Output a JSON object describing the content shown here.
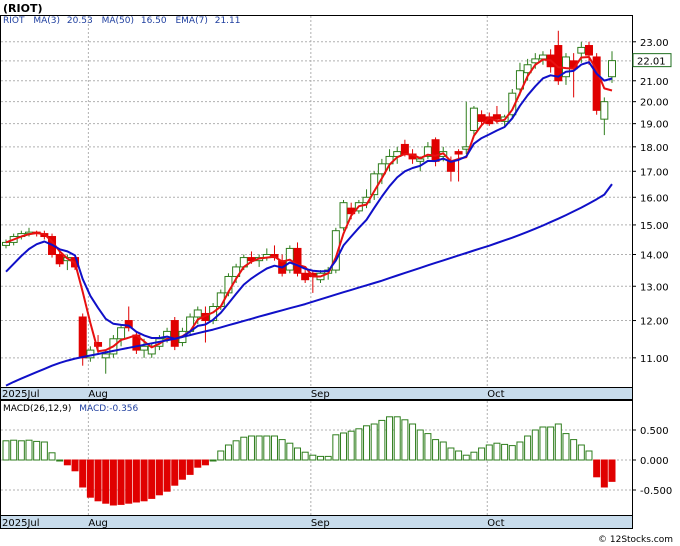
{
  "title": "(RIOT)",
  "footer": "© 12Stocks.com",
  "colors": {
    "up": "#2e7d1c",
    "down": "#e00000",
    "ma3": "#e81010",
    "ma50": "#1010c8",
    "ema7": "#1010c8",
    "axis": "#c8dcec",
    "grid": "#b0b0b0"
  },
  "price_chart": {
    "legend": {
      "symbol": "RIOT",
      "ma3": "MA(3)",
      "ma3_value": "20.53",
      "ma50": "MA(50)",
      "ma50_value": "16.50",
      "ema7": "EMA(7)",
      "ema7_value": "21.11"
    },
    "last_price_label": "22.01",
    "y_ticks": [
      "11.00",
      "12.00",
      "13.00",
      "14.00",
      "15.00",
      "16.00",
      "17.00",
      "18.00",
      "19.00",
      "20.00",
      "21.00",
      "22.00",
      "23.00"
    ],
    "x_labels": [
      "2025Jul",
      "Aug",
      "Sep",
      "Oct"
    ]
  },
  "macd_chart": {
    "legend": {
      "label": "MACD(26,12,9)",
      "value": "MACD:-0.356"
    },
    "y_ticks": [
      "0.500",
      "0.000",
      "-0.500"
    ],
    "x_labels": [
      "2025Jul",
      "Aug",
      "Sep",
      "Oct"
    ]
  },
  "chart_data": [
    {
      "type": "candlestick",
      "title": "(RIOT)",
      "y_scale": "log",
      "ylim": [
        10.3,
        24.2
      ],
      "x_labels": [
        "2025Jul",
        "Aug",
        "Sep",
        "Oct"
      ],
      "candles": [
        [
          14.3,
          14.5,
          14.2,
          14.4
        ],
        [
          14.4,
          14.7,
          14.3,
          14.6
        ],
        [
          14.6,
          14.8,
          14.5,
          14.7
        ],
        [
          14.7,
          14.9,
          14.6,
          14.75
        ],
        [
          14.75,
          14.8,
          14.6,
          14.7
        ],
        [
          14.7,
          14.8,
          14.5,
          14.6
        ],
        [
          14.6,
          14.7,
          13.9,
          14.0
        ],
        [
          14.0,
          14.2,
          13.6,
          13.7
        ],
        [
          13.8,
          14.0,
          13.5,
          13.9
        ],
        [
          13.9,
          14.0,
          13.5,
          13.6
        ],
        [
          12.1,
          12.2,
          10.8,
          11.0
        ],
        [
          11.0,
          11.3,
          10.9,
          11.2
        ],
        [
          11.4,
          11.6,
          11.1,
          11.3
        ],
        [
          11.0,
          11.2,
          10.6,
          11.1
        ],
        [
          11.1,
          11.6,
          11.0,
          11.5
        ],
        [
          11.5,
          11.9,
          11.3,
          11.8
        ],
        [
          12.0,
          12.4,
          11.7,
          11.8
        ],
        [
          11.6,
          11.7,
          11.1,
          11.2
        ],
        [
          11.2,
          11.5,
          11.0,
          11.3
        ],
        [
          11.1,
          11.4,
          11.0,
          11.3
        ],
        [
          11.3,
          11.6,
          11.2,
          11.5
        ],
        [
          11.5,
          11.8,
          11.4,
          11.7
        ],
        [
          12.0,
          12.1,
          11.2,
          11.3
        ],
        [
          11.4,
          11.8,
          11.3,
          11.7
        ],
        [
          11.7,
          12.2,
          11.6,
          12.1
        ],
        [
          12.1,
          12.4,
          11.9,
          12.3
        ],
        [
          12.2,
          12.4,
          11.4,
          12.0
        ],
        [
          12.0,
          12.5,
          11.9,
          12.4
        ],
        [
          12.4,
          12.9,
          12.3,
          12.8
        ],
        [
          12.8,
          13.4,
          12.7,
          13.3
        ],
        [
          13.3,
          13.7,
          13.1,
          13.6
        ],
        [
          13.6,
          14.0,
          13.5,
          13.9
        ],
        [
          13.9,
          14.1,
          13.7,
          13.8
        ],
        [
          13.8,
          14.0,
          13.6,
          13.9
        ],
        [
          13.9,
          14.2,
          13.8,
          14.0
        ],
        [
          14.0,
          14.3,
          13.8,
          13.9
        ],
        [
          13.8,
          14.0,
          13.3,
          13.4
        ],
        [
          13.5,
          14.3,
          13.4,
          14.2
        ],
        [
          14.2,
          14.4,
          13.3,
          13.4
        ],
        [
          13.4,
          13.5,
          13.1,
          13.2
        ],
        [
          13.4,
          13.5,
          12.8,
          13.3
        ],
        [
          13.2,
          13.5,
          13.1,
          13.4
        ],
        [
          13.4,
          13.6,
          13.2,
          13.5
        ],
        [
          13.5,
          14.9,
          13.4,
          14.8
        ],
        [
          14.9,
          15.9,
          14.8,
          15.8
        ],
        [
          15.6,
          15.8,
          15.2,
          15.4
        ],
        [
          15.5,
          15.9,
          15.4,
          15.8
        ],
        [
          15.8,
          16.3,
          15.6,
          16.0
        ],
        [
          16.1,
          17.0,
          15.9,
          16.9
        ],
        [
          16.9,
          17.5,
          16.5,
          17.3
        ],
        [
          17.3,
          17.9,
          17.0,
          17.6
        ],
        [
          17.6,
          18.0,
          17.3,
          17.8
        ],
        [
          18.1,
          18.3,
          17.6,
          17.7
        ],
        [
          17.7,
          17.9,
          17.3,
          17.5
        ],
        [
          17.4,
          17.6,
          17.0,
          17.5
        ],
        [
          17.6,
          18.2,
          17.5,
          18.0
        ],
        [
          18.3,
          18.4,
          17.2,
          17.4
        ],
        [
          17.6,
          18.0,
          17.4,
          17.8
        ],
        [
          17.4,
          17.6,
          16.6,
          17.0
        ],
        [
          17.8,
          17.9,
          16.6,
          17.7
        ],
        [
          17.9,
          20.0,
          17.7,
          18.0
        ],
        [
          18.7,
          19.8,
          18.4,
          19.7
        ],
        [
          19.4,
          19.6,
          18.9,
          19.1
        ],
        [
          19.3,
          19.5,
          18.9,
          19.0
        ],
        [
          19.4,
          19.8,
          19.0,
          19.2
        ],
        [
          19.1,
          19.4,
          18.9,
          19.3
        ],
        [
          19.4,
          20.6,
          19.2,
          20.4
        ],
        [
          20.6,
          21.9,
          20.3,
          21.5
        ],
        [
          21.4,
          22.1,
          21.0,
          21.8
        ],
        [
          21.9,
          22.4,
          21.6,
          22.1
        ],
        [
          22.1,
          22.5,
          21.8,
          22.3
        ],
        [
          22.3,
          22.6,
          21.4,
          21.7
        ],
        [
          22.8,
          23.6,
          20.8,
          21.0
        ],
        [
          21.2,
          22.4,
          20.8,
          22.2
        ],
        [
          22.0,
          22.4,
          20.2,
          21.6
        ],
        [
          22.4,
          23.0,
          21.9,
          22.7
        ],
        [
          22.8,
          23.0,
          21.8,
          22.3
        ],
        [
          22.2,
          22.4,
          19.4,
          19.6
        ],
        [
          19.2,
          20.2,
          18.5,
          20.0
        ],
        [
          21.2,
          22.5,
          20.9,
          22.01
        ]
      ],
      "series": [
        {
          "name": "MA(3)",
          "values": [
            14.4,
            14.5,
            14.6,
            14.68,
            14.72,
            14.68,
            14.43,
            14.1,
            13.87,
            13.73,
            12.83,
            11.93,
            11.17,
            11.2,
            11.3,
            11.47,
            11.53,
            11.6,
            11.43,
            11.27,
            11.37,
            11.5,
            11.5,
            11.57,
            11.7,
            12.03,
            12.13,
            12.23,
            12.4,
            12.83,
            13.23,
            13.6,
            13.77,
            13.87,
            13.9,
            13.93,
            13.77,
            13.83,
            13.67,
            13.6,
            13.3,
            13.3,
            13.4,
            13.9,
            14.7,
            15.33,
            15.67,
            15.73,
            16.23,
            16.73,
            17.27,
            17.57,
            17.7,
            17.67,
            17.53,
            17.67,
            17.63,
            17.73,
            17.4,
            17.5,
            17.57,
            18.47,
            18.93,
            19.27,
            19.1,
            19.17,
            19.63,
            20.4,
            21.23,
            21.8,
            22.07,
            22.03,
            21.67,
            21.63,
            21.6,
            22.17,
            22.2,
            21.53,
            20.63,
            20.53
          ]
        },
        {
          "name": "MA(50)",
          "values": [
            10.31,
            10.4,
            10.48,
            10.56,
            10.64,
            10.72,
            10.8,
            10.87,
            10.93,
            10.98,
            11.02,
            11.06,
            11.1,
            11.14,
            11.18,
            11.22,
            11.26,
            11.3,
            11.34,
            11.38,
            11.42,
            11.46,
            11.5,
            11.55,
            11.6,
            11.65,
            11.7,
            11.75,
            11.81,
            11.87,
            11.93,
            11.99,
            12.05,
            12.11,
            12.17,
            12.23,
            12.29,
            12.35,
            12.41,
            12.47,
            12.54,
            12.61,
            12.68,
            12.75,
            12.82,
            12.89,
            12.96,
            13.03,
            13.1,
            13.17,
            13.25,
            13.33,
            13.41,
            13.49,
            13.57,
            13.65,
            13.73,
            13.81,
            13.89,
            13.97,
            14.05,
            14.13,
            14.21,
            14.29,
            14.38,
            14.47,
            14.56,
            14.66,
            14.76,
            14.87,
            14.98,
            15.1,
            15.22,
            15.35,
            15.48,
            15.62,
            15.77,
            15.93,
            16.1,
            16.5
          ]
        },
        {
          "name": "EMA(7)",
          "values": [
            13.45,
            13.7,
            13.95,
            14.18,
            14.34,
            14.43,
            14.32,
            14.17,
            14.1,
            13.97,
            13.22,
            12.71,
            12.36,
            12.05,
            11.91,
            11.88,
            11.86,
            11.69,
            11.59,
            11.52,
            11.52,
            11.56,
            11.5,
            11.55,
            11.7,
            11.85,
            11.89,
            12.02,
            12.22,
            12.49,
            12.77,
            13.05,
            13.24,
            13.4,
            13.55,
            13.64,
            13.58,
            13.74,
            13.65,
            13.54,
            13.48,
            13.46,
            13.47,
            13.8,
            14.3,
            14.6,
            14.9,
            15.18,
            15.61,
            16.03,
            16.42,
            16.76,
            17.0,
            17.13,
            17.22,
            17.42,
            17.41,
            17.51,
            17.38,
            17.46,
            17.6,
            18.13,
            18.37,
            18.53,
            18.7,
            18.85,
            19.24,
            19.81,
            20.3,
            20.73,
            21.12,
            21.27,
            21.2,
            21.45,
            21.49,
            21.81,
            21.93,
            21.35,
            21.01,
            21.11
          ]
        }
      ]
    },
    {
      "type": "bar",
      "title": "MACD(26,12,9)",
      "ylim": [
        -0.9,
        0.95
      ],
      "series": [
        {
          "name": "MACD:-0.356",
          "values": [
            0.32,
            0.33,
            0.32,
            0.33,
            0.31,
            0.3,
            0.12,
            0.0,
            -0.08,
            -0.18,
            -0.45,
            -0.62,
            -0.68,
            -0.72,
            -0.75,
            -0.74,
            -0.72,
            -0.7,
            -0.68,
            -0.64,
            -0.58,
            -0.52,
            -0.42,
            -0.32,
            -0.24,
            -0.12,
            -0.08,
            0.0,
            0.15,
            0.25,
            0.32,
            0.38,
            0.4,
            0.4,
            0.4,
            0.4,
            0.34,
            0.28,
            0.2,
            0.13,
            0.08,
            0.06,
            0.06,
            0.42,
            0.45,
            0.48,
            0.52,
            0.57,
            0.6,
            0.66,
            0.72,
            0.72,
            0.67,
            0.6,
            0.5,
            0.44,
            0.34,
            0.3,
            0.2,
            0.15,
            0.08,
            0.13,
            0.2,
            0.25,
            0.28,
            0.26,
            0.24,
            0.3,
            0.4,
            0.5,
            0.55,
            0.55,
            0.6,
            0.44,
            0.34,
            0.25,
            0.15,
            -0.28,
            -0.45,
            -0.356
          ]
        }
      ]
    }
  ]
}
